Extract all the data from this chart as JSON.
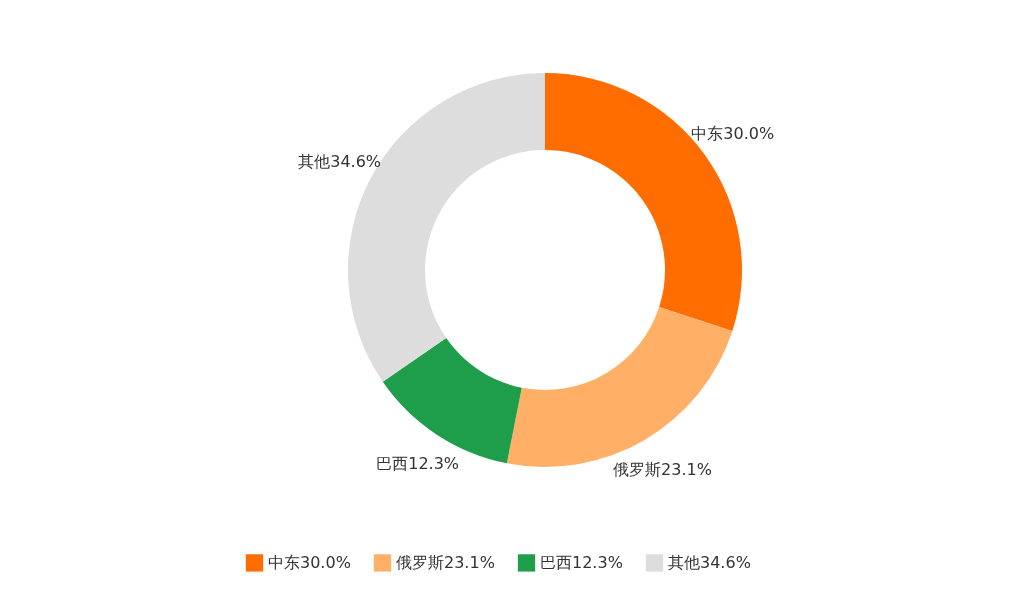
{
  "chart_data": {
    "type": "donut",
    "categories": [
      "中东30.0%",
      "俄罗斯23.1%",
      "巴西12.3%",
      "其他34.6%"
    ],
    "values": [
      30.0,
      23.1,
      12.3,
      34.6
    ],
    "colors": [
      "#ff6d00",
      "#ffb066",
      "#1e9e4a",
      "#dddddd"
    ],
    "legend": "bottom"
  }
}
